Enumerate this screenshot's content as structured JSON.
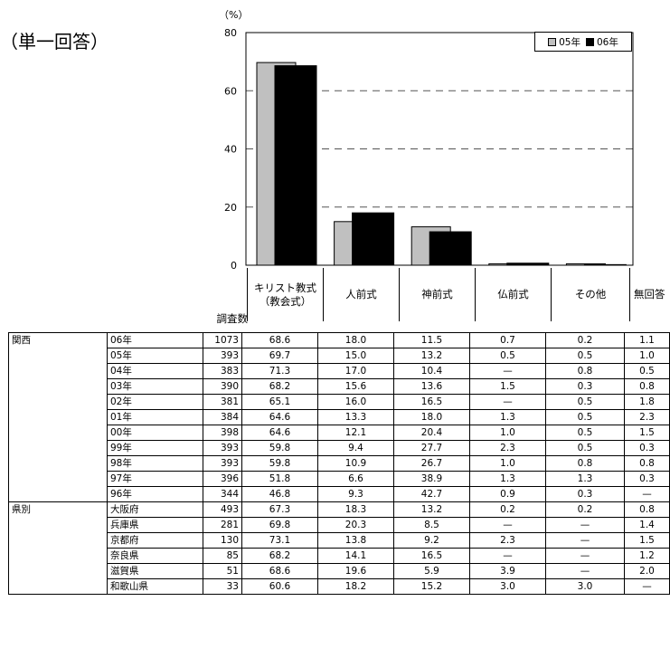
{
  "heading": "（単一回答）",
  "chart_data": {
    "type": "bar",
    "unit_label": "（%）",
    "ylim": [
      0,
      80
    ],
    "yticks": [
      0,
      20,
      40,
      60,
      80
    ],
    "grid": "dashed",
    "legend_position": "top-right",
    "categories": [
      "キリスト教式（教会式）",
      "人前式",
      "神前式",
      "仏前式",
      "その他"
    ],
    "series": [
      {
        "name": "05年",
        "color": "#c0c0c0",
        "values": [
          69.7,
          15.0,
          13.2,
          0.5,
          0.5
        ]
      },
      {
        "name": "06年",
        "color": "#000000",
        "values": [
          68.6,
          18.0,
          11.5,
          0.7,
          0.2
        ]
      }
    ]
  },
  "table": {
    "n_header": "調査数",
    "columns": [
      {
        "line1": "キリスト教式",
        "line2": "（教会式）"
      },
      {
        "line1": "人前式"
      },
      {
        "line1": "神前式"
      },
      {
        "line1": "仏前式"
      },
      {
        "line1": "その他"
      },
      {
        "line1": "無回答"
      }
    ],
    "groups": [
      {
        "name": "関西",
        "rows": [
          {
            "label": "06年",
            "n": "1073",
            "v": [
              "68.6",
              "18.0",
              "11.5",
              "0.7",
              "0.2",
              "1.1"
            ]
          },
          {
            "label": "05年",
            "n": "393",
            "v": [
              "69.7",
              "15.0",
              "13.2",
              "0.5",
              "0.5",
              "1.0"
            ]
          },
          {
            "label": "04年",
            "n": "383",
            "v": [
              "71.3",
              "17.0",
              "10.4",
              "—",
              "0.8",
              "0.5"
            ]
          },
          {
            "label": "03年",
            "n": "390",
            "v": [
              "68.2",
              "15.6",
              "13.6",
              "1.5",
              "0.3",
              "0.8"
            ]
          },
          {
            "label": "02年",
            "n": "381",
            "v": [
              "65.1",
              "16.0",
              "16.5",
              "—",
              "0.5",
              "1.8"
            ]
          },
          {
            "label": "01年",
            "n": "384",
            "v": [
              "64.6",
              "13.3",
              "18.0",
              "1.3",
              "0.5",
              "2.3"
            ]
          },
          {
            "label": "00年",
            "n": "398",
            "v": [
              "64.6",
              "12.1",
              "20.4",
              "1.0",
              "0.5",
              "1.5"
            ]
          },
          {
            "label": "99年",
            "n": "393",
            "v": [
              "59.8",
              "9.4",
              "27.7",
              "2.3",
              "0.5",
              "0.3"
            ]
          },
          {
            "label": "98年",
            "n": "393",
            "v": [
              "59.8",
              "10.9",
              "26.7",
              "1.0",
              "0.8",
              "0.8"
            ]
          },
          {
            "label": "97年",
            "n": "396",
            "v": [
              "51.8",
              "6.6",
              "38.9",
              "1.3",
              "1.3",
              "0.3"
            ]
          },
          {
            "label": "96年",
            "n": "344",
            "v": [
              "46.8",
              "9.3",
              "42.7",
              "0.9",
              "0.3",
              "—"
            ]
          }
        ]
      },
      {
        "name": "県別",
        "rows": [
          {
            "label": "大阪府",
            "n": "493",
            "v": [
              "67.3",
              "18.3",
              "13.2",
              "0.2",
              "0.2",
              "0.8"
            ]
          },
          {
            "label": "兵庫県",
            "n": "281",
            "v": [
              "69.8",
              "20.3",
              "8.5",
              "—",
              "—",
              "1.4"
            ]
          },
          {
            "label": "京都府",
            "n": "130",
            "v": [
              "73.1",
              "13.8",
              "9.2",
              "2.3",
              "—",
              "1.5"
            ]
          },
          {
            "label": "奈良県",
            "n": "85",
            "v": [
              "68.2",
              "14.1",
              "16.5",
              "—",
              "—",
              "1.2"
            ]
          },
          {
            "label": "滋賀県",
            "n": "51",
            "v": [
              "68.6",
              "19.6",
              "5.9",
              "3.9",
              "—",
              "2.0"
            ]
          },
          {
            "label": "和歌山県",
            "n": "33",
            "v": [
              "60.6",
              "18.2",
              "15.2",
              "3.0",
              "3.0",
              "—"
            ]
          }
        ]
      }
    ]
  }
}
